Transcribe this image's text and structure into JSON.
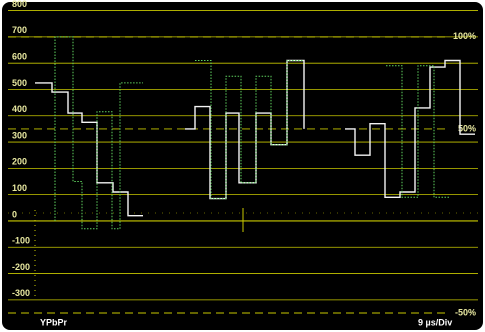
{
  "chart_data": {
    "type": "line",
    "ylim": [
      -350,
      825
    ],
    "yticks": [
      800,
      700,
      600,
      500,
      400,
      300,
      200,
      100,
      0,
      -100,
      -200,
      -300
    ],
    "xlim": [
      0,
      470
    ],
    "grid": true,
    "reference_lines": [
      {
        "value": 700,
        "label": "100%"
      },
      {
        "value": 350,
        "label": "50%"
      },
      {
        "value": -350,
        "label": "-50%"
      }
    ],
    "format_label": "YPbPr",
    "scale_label": "9 µs/Div",
    "series": [
      {
        "color": "#f4f4f4",
        "style": "solid",
        "x": [
          27,
          44,
          44,
          60,
          60,
          74,
          74,
          89,
          89,
          105,
          105,
          120,
          120,
          135,
          null,
          177,
          187,
          187,
          202,
          202,
          218,
          218,
          231,
          231,
          248,
          248,
          263,
          263,
          279,
          279,
          296,
          296,
          null,
          337,
          347,
          347,
          362,
          362,
          377,
          377,
          392,
          392,
          407,
          407,
          422,
          422,
          437,
          437,
          452,
          452,
          467
        ],
        "values": [
          525,
          525,
          490,
          490,
          410,
          410,
          375,
          375,
          145,
          145,
          110,
          110,
          20,
          20,
          null,
          350,
          350,
          435,
          435,
          85,
          85,
          410,
          410,
          145,
          145,
          410,
          410,
          290,
          290,
          610,
          610,
          350,
          null,
          350,
          350,
          250,
          250,
          370,
          370,
          90,
          90,
          110,
          110,
          430,
          430,
          585,
          585,
          610,
          610,
          330,
          330
        ]
      },
      {
        "color": "#5fd35f",
        "style": "dotted",
        "x": [
          47,
          47,
          65,
          65,
          74,
          74,
          89,
          89,
          104,
          104,
          112,
          112,
          120,
          120,
          135,
          null,
          187,
          203,
          203,
          218,
          218,
          233,
          233,
          248,
          248,
          263,
          263,
          279,
          279,
          296,
          null,
          378,
          394,
          394,
          410,
          410,
          426,
          426,
          441
        ],
        "values": [
          0,
          700,
          700,
          150,
          150,
          -30,
          -30,
          415,
          415,
          -30,
          -30,
          525,
          525,
          525,
          525,
          null,
          610,
          610,
          85,
          85,
          550,
          550,
          145,
          145,
          550,
          550,
          290,
          290,
          610,
          610,
          null,
          590,
          590,
          90,
          90,
          590,
          590,
          90,
          90
        ]
      }
    ]
  }
}
